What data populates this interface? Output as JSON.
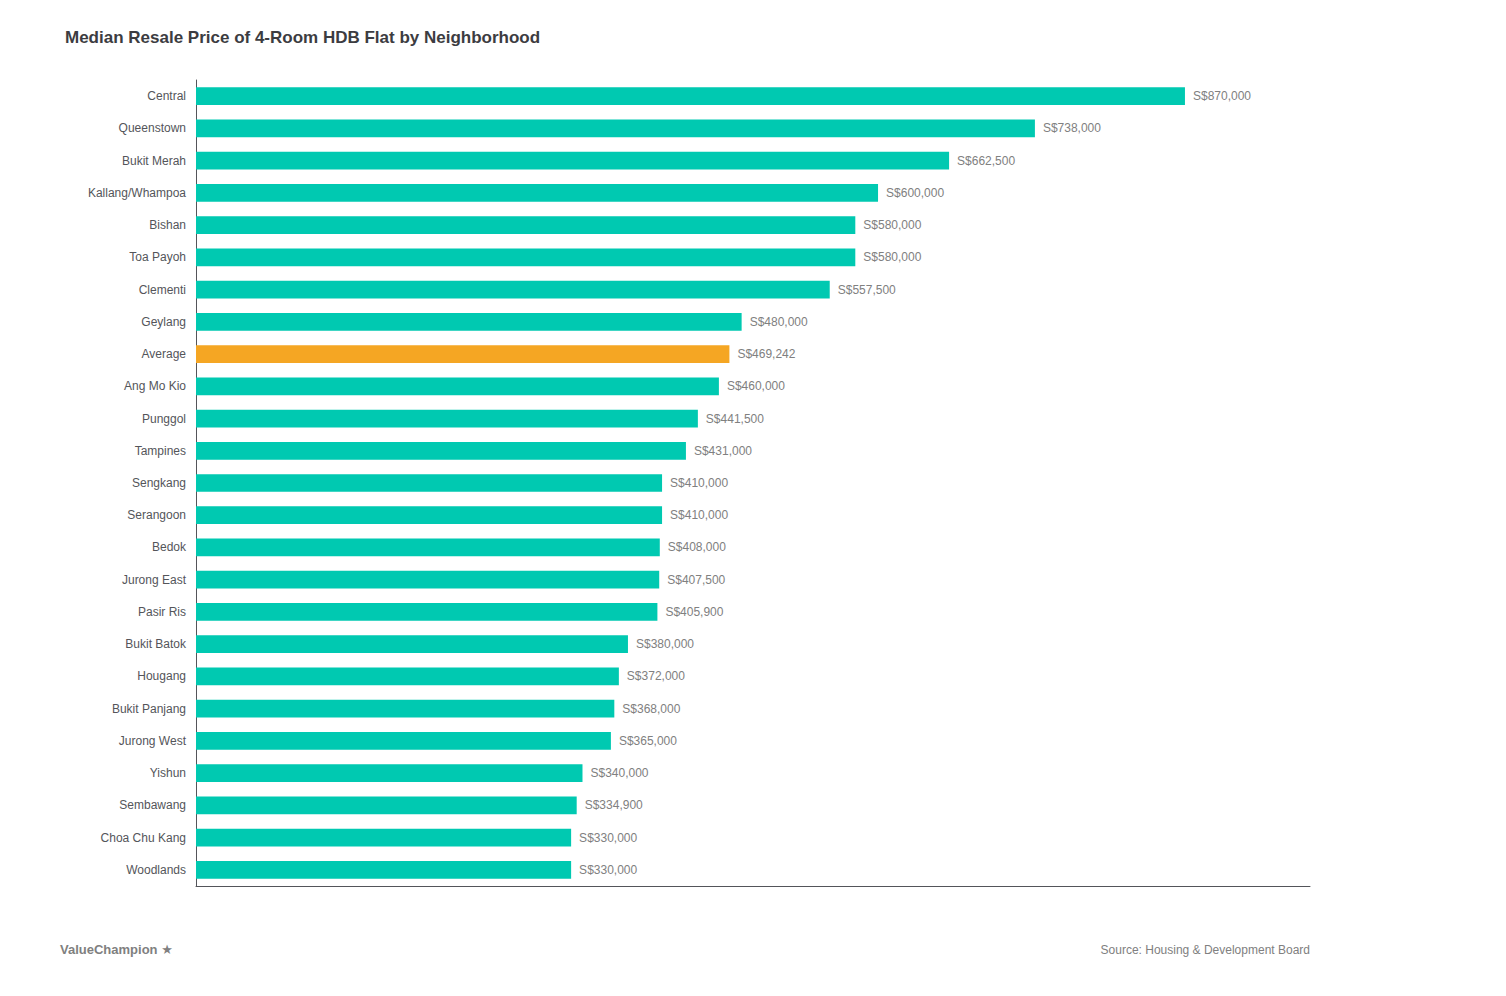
{
  "chart_data": {
    "type": "bar",
    "orientation": "horizontal",
    "title": "Median Resale Price of 4-Room HDB Flat by Neighborhood",
    "categories": [
      "Woodlands",
      "Choa Chu Kang",
      "Sembawang",
      "Yishun",
      "Jurong West",
      "Bukit Panjang",
      "Hougang",
      "Bukit Batok",
      "Pasir Ris",
      "Jurong East",
      "Bedok",
      "Serangoon",
      "Sengkang",
      "Tampines",
      "Punggol",
      "Ang Mo Kio",
      "Average",
      "Geylang",
      "Clementi",
      "Toa Payoh",
      "Bishan",
      "Kallang/Whampoa",
      "Bukit Merah",
      "Queenstown",
      "Central"
    ],
    "values": [
      330000,
      330000,
      334900,
      340000,
      365000,
      368000,
      372000,
      380000,
      405900,
      407500,
      408000,
      410000,
      410000,
      431000,
      441500,
      460000,
      469242,
      480000,
      557500,
      580000,
      580000,
      600000,
      662500,
      738000,
      870000
    ],
    "value_labels": [
      "S$330,000",
      "S$330,000",
      "S$334,900",
      "S$340,000",
      "S$365,000",
      "S$368,000",
      "S$372,000",
      "S$380,000",
      "S$405,900",
      "S$407,500",
      "S$408,000",
      "S$410,000",
      "S$410,000",
      "S$431,000",
      "S$441,500",
      "S$460,000",
      "S$469,242",
      "S$480,000",
      "S$557,500",
      "S$580,000",
      "S$580,000",
      "S$600,000",
      "S$662,500",
      "S$738,000",
      "S$870,000"
    ],
    "colors": [
      "#00C9B1",
      "#00C9B1",
      "#00C9B1",
      "#00C9B1",
      "#00C9B1",
      "#00C9B1",
      "#00C9B1",
      "#00C9B1",
      "#00C9B1",
      "#00C9B1",
      "#00C9B1",
      "#00C9B1",
      "#00C9B1",
      "#00C9B1",
      "#00C9B1",
      "#00C9B1",
      "#F5A623",
      "#00C9B1",
      "#00C9B1",
      "#00C9B1",
      "#00C9B1",
      "#00C9B1",
      "#00C9B1",
      "#00C9B1",
      "#00C9B1"
    ],
    "data_labels": true,
    "xlim": [
      0,
      980000
    ],
    "tick_labels": "y",
    "grid": false,
    "annotations": [
      "Source: Housing & Development Board",
      "ValueChampion",
      "★"
    ]
  }
}
